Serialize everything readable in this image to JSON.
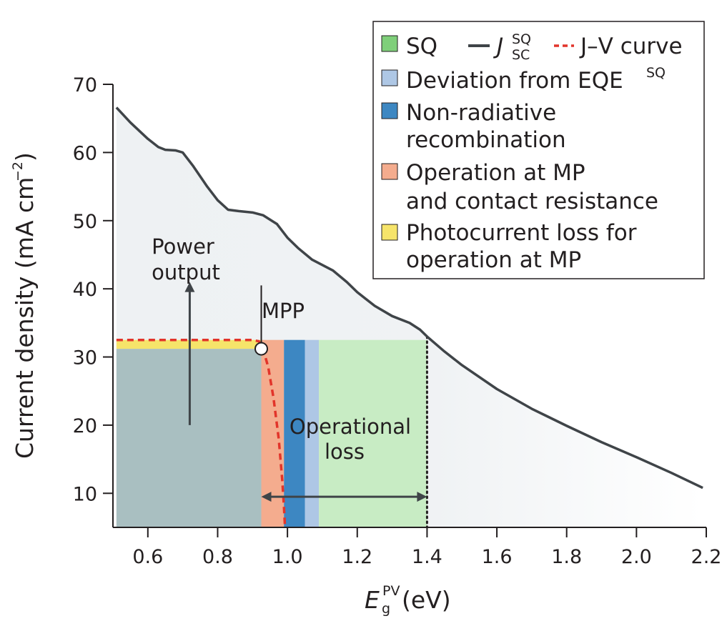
{
  "chart_data": {
    "type": "area",
    "xlabel": {
      "main": "E",
      "sub": "g",
      "sup": "PV",
      "unit": " (eV)"
    },
    "ylabel": {
      "main": "Current density (mA cm",
      "sup": "−2",
      "close": ")"
    },
    "xlim": [
      0.5,
      2.2
    ],
    "ylim": [
      5,
      70
    ],
    "x_ticks": [
      0.6,
      0.8,
      1.0,
      1.2,
      1.4,
      1.6,
      1.8,
      2.0,
      2.2
    ],
    "x_tick_labels": [
      "0.6",
      "0.8",
      "1.0",
      "1.2",
      "1.4",
      "1.6",
      "1.8",
      "2.0",
      "2.2"
    ],
    "y_ticks": [
      10,
      20,
      30,
      40,
      50,
      60,
      70
    ],
    "y_tick_labels": [
      "10",
      "20",
      "30",
      "40",
      "50",
      "60",
      "70"
    ],
    "grid": false,
    "legend_position": "top-right",
    "series": {
      "jsc_sq": {
        "x": [
          0.51,
          0.55,
          0.6,
          0.63,
          0.65,
          0.68,
          0.7,
          0.73,
          0.77,
          0.8,
          0.83,
          0.86,
          0.9,
          0.93,
          0.97,
          1.0,
          1.03,
          1.07,
          1.1,
          1.13,
          1.17,
          1.2,
          1.25,
          1.3,
          1.35,
          1.38,
          1.4,
          1.45,
          1.5,
          1.6,
          1.7,
          1.8,
          1.9,
          2.0,
          2.1,
          2.19
        ],
        "y": [
          66.6,
          64.4,
          62.0,
          60.8,
          60.4,
          60.3,
          60.0,
          58.0,
          55.0,
          53.0,
          51.6,
          51.4,
          51.2,
          50.8,
          49.5,
          47.5,
          46.0,
          44.3,
          43.5,
          42.7,
          41.0,
          39.5,
          37.5,
          36.0,
          35.0,
          34.0,
          33.0,
          30.8,
          28.8,
          25.3,
          22.4,
          19.9,
          17.5,
          15.3,
          13.0,
          10.8
        ]
      },
      "jv_curve": {
        "x": [
          0.51,
          0.6,
          0.7,
          0.8,
          0.9,
          0.918,
          0.93,
          0.945,
          0.96,
          0.975,
          0.985,
          0.99,
          0.993
        ],
        "y": [
          32.5,
          32.5,
          32.5,
          32.5,
          32.5,
          32.3,
          31.2,
          28.5,
          24.0,
          18.0,
          12.0,
          8.0,
          5.0
        ]
      }
    },
    "regions": [
      {
        "name": "Power output",
        "x": [
          0.51,
          0.925
        ],
        "y": [
          5,
          31.2
        ],
        "color": "#a9bfc1"
      },
      {
        "name": "Photocurrent loss for operation at MP",
        "x": [
          0.51,
          0.925
        ],
        "y": [
          31.2,
          32.5
        ],
        "color": "#f6e46a"
      },
      {
        "name": "Operation at MP and contact resistance",
        "x": [
          0.925,
          0.99
        ],
        "y": [
          5,
          32.5
        ],
        "color": "#f4ac8e"
      },
      {
        "name": "Non-radiative recombination",
        "x": [
          0.99,
          1.05
        ],
        "y": [
          5,
          32.5
        ],
        "color": "#3d87c2"
      },
      {
        "name": "Deviation from EQE^SQ",
        "x": [
          1.05,
          1.09
        ],
        "y": [
          5,
          32.5
        ],
        "color": "#aec7e5"
      },
      {
        "name": "SQ",
        "x": [
          1.09,
          1.4
        ],
        "y": [
          5,
          32.5
        ],
        "color": "#c8ecc4"
      }
    ],
    "mpp": {
      "x": 0.925,
      "y": 31.2,
      "label": "MPP"
    },
    "annotations": {
      "power_output": [
        "Power",
        "output"
      ],
      "operational_loss": [
        "Operational",
        "loss"
      ],
      "operational_loss_range": [
        0.925,
        1.4
      ],
      "power_arrow_x": 0.72,
      "power_arrow_y": [
        20,
        41
      ]
    },
    "bandgap_line_x": 1.4,
    "colors": {
      "jsc_line": "#3f4448",
      "jv_line": "#e2342a",
      "under_curve": "#eef1f3",
      "axis": "#231f20"
    },
    "legend": {
      "items": [
        {
          "key": "sq",
          "label": "SQ",
          "color": "#7fcf7a"
        },
        {
          "key": "deviation",
          "label": "Deviation from EQE",
          "sup": "SQ",
          "color": "#aec7e5"
        },
        {
          "key": "nonrad",
          "label": [
            "Non-radiative",
            "recombination"
          ],
          "color": "#3d87c2"
        },
        {
          "key": "operation",
          "label": [
            "Operation at MP",
            "and contact resistance"
          ],
          "color": "#f4ac8e"
        },
        {
          "key": "photocurrent",
          "label": [
            "Photocurrent loss for",
            "operation at MP"
          ],
          "color": "#f6e46a"
        }
      ],
      "jsc_label": {
        "main": "J",
        "sup": "SQ",
        "sub": "SC"
      },
      "jv_label": "J–V curve"
    }
  }
}
